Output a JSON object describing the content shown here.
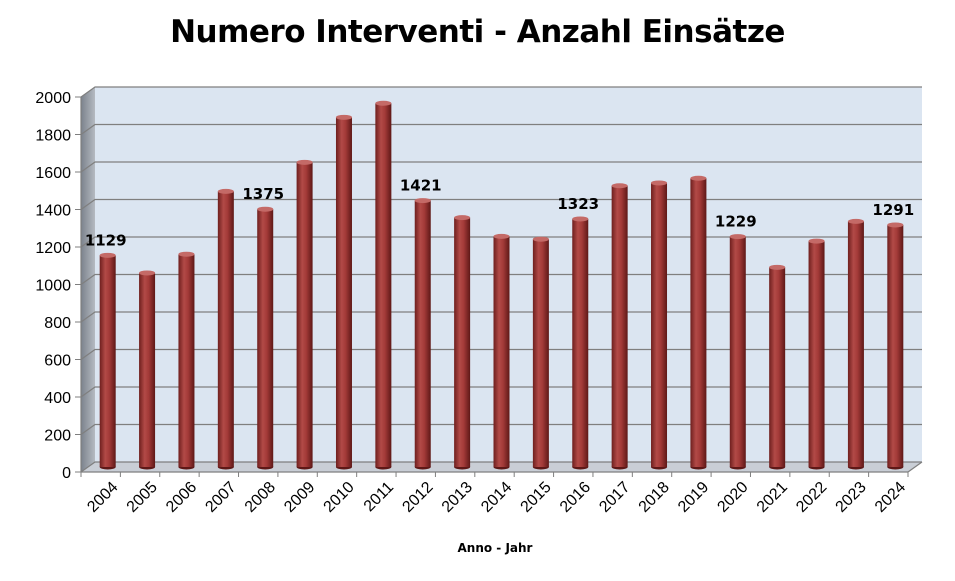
{
  "chart_data": {
    "type": "bar",
    "title": "Numero Interventi - Anzahl Einsätze",
    "xlabel": "Anno - Jahr",
    "ylabel": "",
    "ylim": [
      0,
      2000
    ],
    "yticks": [
      "0",
      "200",
      "400",
      "600",
      "800",
      "1000",
      "1200",
      "1400",
      "1600",
      "1800",
      "2000"
    ],
    "categories": [
      "2004",
      "2005",
      "2006",
      "2007",
      "2008",
      "2009",
      "2010",
      "2011",
      "2012",
      "2013",
      "2014",
      "2015",
      "2016",
      "2017",
      "2018",
      "2019",
      "2020",
      "2021",
      "2022",
      "2023",
      "2024"
    ],
    "values": [
      1129,
      1035,
      1135,
      1470,
      1375,
      1625,
      1865,
      1940,
      1421,
      1330,
      1230,
      1215,
      1323,
      1500,
      1515,
      1540,
      1229,
      1065,
      1205,
      1310,
      1291
    ],
    "data_labels": [
      {
        "index": 0,
        "text": "1129"
      },
      {
        "index": 4,
        "text": "1375"
      },
      {
        "index": 8,
        "text": "1421"
      },
      {
        "index": 12,
        "text": "1323"
      },
      {
        "index": 16,
        "text": "1229"
      },
      {
        "index": 20,
        "text": "1291"
      }
    ],
    "grid": true,
    "legend": "none",
    "colors": {
      "bar": "#a33a38",
      "plot_background": "#dbe5f1",
      "gridline": "#7f7f7f",
      "side_wall": "#9aa0a8"
    }
  }
}
